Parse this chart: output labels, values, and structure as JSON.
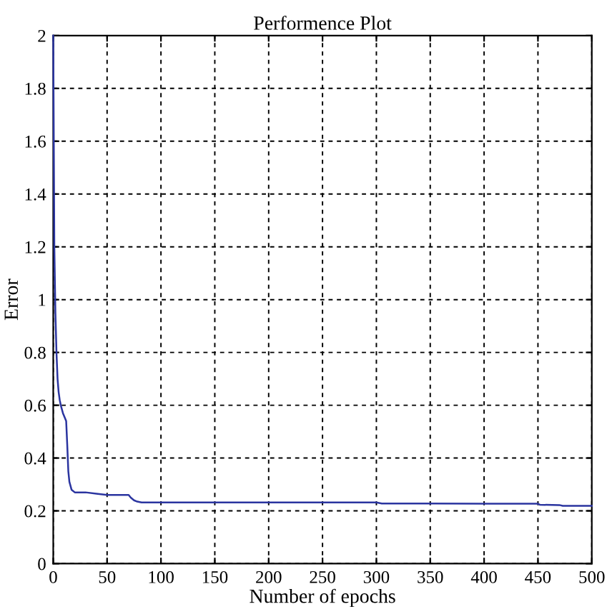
{
  "chart_data": {
    "type": "line",
    "title": "Performence Plot",
    "xlabel": "Number of epochs",
    "ylabel": "Error",
    "series": [
      {
        "color": "#2b35a0",
        "x": [
          0,
          0.5,
          1,
          2,
          3,
          4,
          5,
          6,
          7,
          9,
          11,
          12,
          13,
          14,
          15,
          17,
          20,
          30,
          40,
          50,
          60,
          70,
          72,
          75,
          78,
          82,
          100,
          200,
          300,
          305,
          350,
          400,
          450,
          452,
          470,
          473,
          500
        ],
        "values": [
          2.0,
          1.6,
          1.2,
          0.95,
          0.8,
          0.7,
          0.65,
          0.62,
          0.6,
          0.57,
          0.55,
          0.54,
          0.45,
          0.35,
          0.31,
          0.28,
          0.27,
          0.27,
          0.265,
          0.26,
          0.26,
          0.26,
          0.25,
          0.24,
          0.235,
          0.232,
          0.232,
          0.232,
          0.232,
          0.228,
          0.228,
          0.227,
          0.227,
          0.223,
          0.222,
          0.219,
          0.219
        ]
      }
    ],
    "xlim": [
      0,
      500
    ],
    "ylim": [
      0,
      2
    ],
    "xticks": [
      0,
      50,
      100,
      150,
      200,
      250,
      300,
      350,
      400,
      450,
      500
    ],
    "yticks": [
      0,
      0.2,
      0.4,
      0.6,
      0.8,
      1,
      1.2,
      1.4,
      1.6,
      1.8,
      2
    ],
    "grid": true,
    "line_style": "solid",
    "marker": "none"
  }
}
